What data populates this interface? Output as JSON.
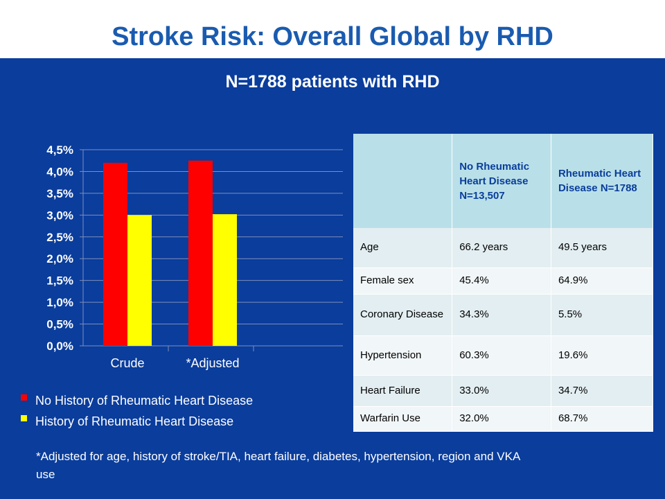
{
  "header": {
    "title": "Stroke Risk: Overall Global by RHD"
  },
  "subtitle": "N=1788 patients with RHD",
  "legend": [
    {
      "label": "No History of Rheumatic Heart Disease",
      "color": "#ff0000"
    },
    {
      "label": "History of Rheumatic Heart Disease",
      "color": "#ffff00"
    }
  ],
  "footnote": "*Adjusted for age, history of stroke/TIA, heart failure, diabetes, hypertension, region and VKA use",
  "chart_data": {
    "type": "bar",
    "title": "",
    "xlabel": "",
    "ylabel": "",
    "categories": [
      "Crude",
      "*Adjusted"
    ],
    "series": [
      {
        "name": "No History of Rheumatic Heart Disease",
        "values": [
          4.2,
          4.25
        ],
        "color": "#ff0000"
      },
      {
        "name": "History of Rheumatic Heart Disease",
        "values": [
          3.0,
          3.02
        ],
        "color": "#ffff00"
      }
    ],
    "ylim": [
      0,
      4.5
    ],
    "yticks": [
      "0,0%",
      "0,5%",
      "1,0%",
      "1,5%",
      "2,0%",
      "2,5%",
      "3,0%",
      "3,5%",
      "4,0%",
      "4,5%"
    ],
    "grid": true,
    "legend_position": "bottom-left"
  },
  "table": {
    "headers": [
      "",
      "No Rheumatic Heart Disease N=13,507",
      "Rheumatic Heart Disease N=1788"
    ],
    "rows": [
      [
        "Age",
        "66.2 years",
        "49.5 years"
      ],
      [
        "Female sex",
        "45.4%",
        "64.9%"
      ],
      [
        "Coronary Disease",
        "34.3%",
        "5.5%"
      ],
      [
        "Hypertension",
        "60.3%",
        "19.6%"
      ],
      [
        "Heart Failure",
        "33.0%",
        "34.7%"
      ],
      [
        "Warfarin Use",
        "32.0%",
        "68.7%"
      ]
    ]
  }
}
